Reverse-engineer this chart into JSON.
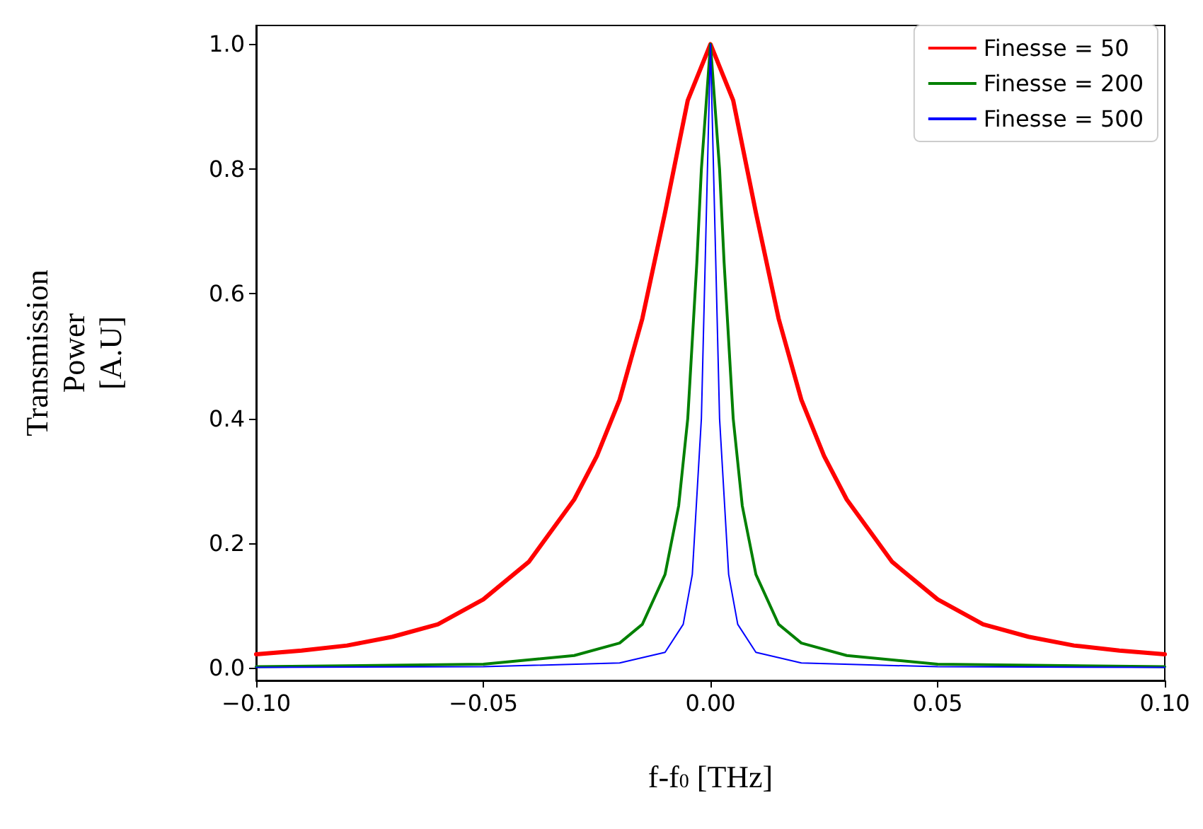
{
  "chart_data": {
    "type": "line",
    "xlabel": "f-f$_{0}$ [THz]",
    "ylabel": "Transmission Power [A.U]",
    "xlim": [
      -0.1,
      0.1
    ],
    "ylim": [
      -0.02,
      1.03
    ],
    "xticks": [
      {
        "value": -0.1,
        "label": "−0.10"
      },
      {
        "value": -0.05,
        "label": "−0.05"
      },
      {
        "value": 0,
        "label": "0.00"
      },
      {
        "value": 0.05,
        "label": "0.05"
      },
      {
        "value": 0.1,
        "label": "0.10"
      }
    ],
    "yticks": [
      {
        "value": 0,
        "label": "0.0"
      },
      {
        "value": 0.2,
        "label": "0.2"
      },
      {
        "value": 0.4,
        "label": "0.4"
      },
      {
        "value": 0.6,
        "label": "0.6"
      },
      {
        "value": 0.8,
        "label": "0.8"
      },
      {
        "value": 1,
        "label": "1.0"
      }
    ],
    "grid": false,
    "legend": "top right",
    "marker": "none",
    "line_style": "solid",
    "series": [
      {
        "name": "Finesse = 50",
        "color": "#ff0000",
        "x": [
          -0.1,
          -0.09,
          -0.08,
          -0.07,
          -0.06,
          -0.05,
          -0.04,
          -0.03,
          -0.025,
          -0.02,
          -0.015,
          -0.01,
          -0.005,
          0,
          0.005,
          0.01,
          0.015,
          0.02,
          0.025,
          0.03,
          0.04,
          0.05,
          0.06,
          0.07,
          0.08,
          0.09,
          0.1
        ],
        "values": [
          0.022,
          0.028,
          0.036,
          0.05,
          0.07,
          0.11,
          0.17,
          0.27,
          0.34,
          0.43,
          0.56,
          0.73,
          0.91,
          1.0,
          0.91,
          0.73,
          0.56,
          0.43,
          0.34,
          0.27,
          0.17,
          0.11,
          0.07,
          0.05,
          0.036,
          0.028,
          0.022
        ]
      },
      {
        "name": "Finesse = 200",
        "color": "#008000",
        "x": [
          -0.1,
          -0.05,
          -0.03,
          -0.02,
          -0.015,
          -0.01,
          -0.007,
          -0.005,
          -0.003,
          -0.002,
          0,
          0.002,
          0.003,
          0.005,
          0.007,
          0.01,
          0.015,
          0.02,
          0.03,
          0.05,
          0.1
        ],
        "values": [
          0.002,
          0.006,
          0.02,
          0.04,
          0.07,
          0.15,
          0.26,
          0.4,
          0.65,
          0.8,
          1.0,
          0.8,
          0.65,
          0.4,
          0.26,
          0.15,
          0.07,
          0.04,
          0.02,
          0.006,
          0.002
        ]
      },
      {
        "name": "Finesse = 500",
        "color": "#0000ff",
        "x": [
          -0.1,
          -0.05,
          -0.02,
          -0.01,
          -0.006,
          -0.004,
          -0.002,
          -0.001,
          0,
          0.001,
          0.002,
          0.004,
          0.006,
          0.01,
          0.02,
          0.05,
          0.1
        ],
        "values": [
          0.001,
          0.002,
          0.008,
          0.025,
          0.07,
          0.15,
          0.4,
          0.7,
          1.0,
          0.7,
          0.4,
          0.15,
          0.07,
          0.025,
          0.008,
          0.002,
          0.001
        ]
      }
    ]
  }
}
